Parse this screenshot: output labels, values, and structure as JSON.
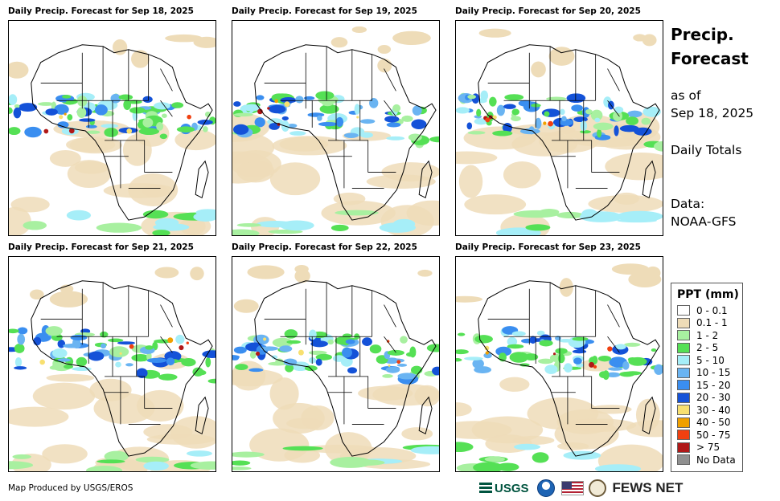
{
  "panels": [
    {
      "title": "Daily Precip. Forecast for Sep 18, 2025"
    },
    {
      "title": "Daily Precip. Forecast for Sep 19, 2025"
    },
    {
      "title": "Daily Precip. Forecast for Sep 20, 2025"
    },
    {
      "title": "Daily Precip. Forecast for Sep 21, 2025"
    },
    {
      "title": "Daily Precip. Forecast for Sep 22, 2025"
    },
    {
      "title": "Daily Precip. Forecast for Sep 23, 2025"
    }
  ],
  "side": {
    "title": "Precip. Forecast",
    "as_of_label": "as of",
    "as_of_date": "Sep 18, 2025",
    "totals": "Daily Totals",
    "data_label": "Data:",
    "data_source": "NOAA-GFS"
  },
  "legend": {
    "title": "PPT (mm)",
    "items": [
      {
        "label": "0 - 0.1",
        "color": "#ffffff"
      },
      {
        "label": "0.1 - 1",
        "color": "#eedcb8"
      },
      {
        "label": "1 - 2",
        "color": "#a8f0a0"
      },
      {
        "label": "2 - 5",
        "color": "#55e055"
      },
      {
        "label": "5 - 10",
        "color": "#a6eef8"
      },
      {
        "label": "10 - 15",
        "color": "#6ab4f2"
      },
      {
        "label": "15 - 20",
        "color": "#3a8ef0"
      },
      {
        "label": "20 - 30",
        "color": "#1452d8"
      },
      {
        "label": "30 - 40",
        "color": "#f8e070"
      },
      {
        "label": "40 - 50",
        "color": "#f0a000"
      },
      {
        "label": "50 - 75",
        "color": "#f04010"
      },
      {
        "label": "> 75",
        "color": "#b01818"
      },
      {
        "label": "No Data",
        "color": "#909090"
      }
    ]
  },
  "footer": {
    "credit": "Map Produced by USGS/EROS",
    "usgs": "USGS",
    "fews": "FEWS NET"
  }
}
